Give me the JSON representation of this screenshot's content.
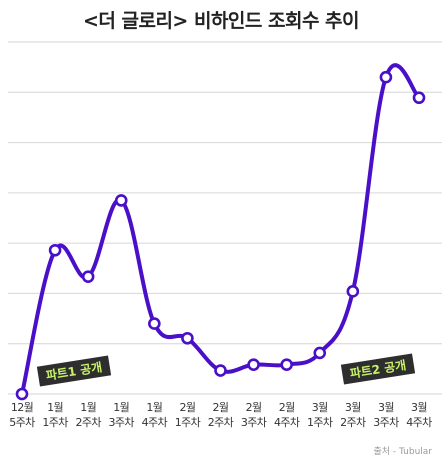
{
  "title": "<더 글로리> 비하인드 조회수 추이",
  "source": "출처 - Tubular",
  "colors": {
    "line": "#4a10c8",
    "grid": "#d6d6d6",
    "badge_bg": "#2e2e2e",
    "badge_text": "#c8f26a"
  },
  "chart_data": {
    "type": "line",
    "title": "<더 글로리> 비하인드 조회수 추이",
    "xlabel": "",
    "ylabel": "",
    "categories": [
      [
        "12월",
        "5주차"
      ],
      [
        "1월",
        "1주차"
      ],
      [
        "1월",
        "2주차"
      ],
      [
        "1월",
        "3주차"
      ],
      [
        "1월",
        "4주차"
      ],
      [
        "2월",
        "1주차"
      ],
      [
        "2월",
        "2주차"
      ],
      [
        "2월",
        "3주차"
      ],
      [
        "2월",
        "4주차"
      ],
      [
        "3월",
        "1주차"
      ],
      [
        "3월",
        "2주차"
      ],
      [
        "3월",
        "3주차"
      ],
      [
        "3월",
        "4주차"
      ]
    ],
    "values": [
      0.0,
      0.49,
      0.4,
      0.66,
      0.24,
      0.19,
      0.08,
      0.1,
      0.1,
      0.14,
      0.35,
      1.08,
      1.01
    ],
    "ylim": [
      0,
      1.2
    ],
    "grid": true,
    "y_tick_labels_shown": false,
    "annotations": [
      {
        "text": "파트1 공개",
        "near_index": 1
      },
      {
        "text": "파트2 공개",
        "near_index": 11
      }
    ]
  }
}
